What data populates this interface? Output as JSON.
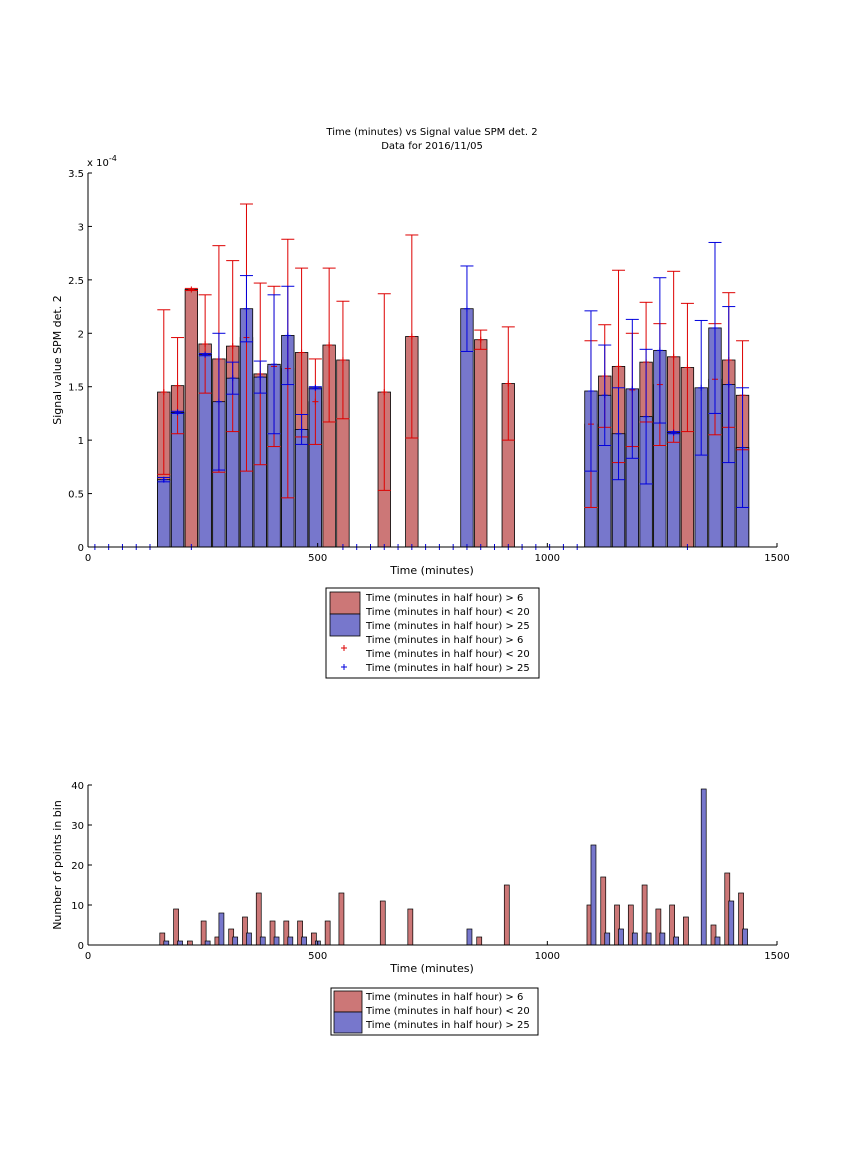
{
  "colors": {
    "red_bar": "#cc7777",
    "blue_bar": "#7777cc",
    "red_err": "#dd0000",
    "blue_err": "#0000dd"
  },
  "chart_data": [
    {
      "type": "bar",
      "title": "Time (minutes) vs Signal value SPM det. 2",
      "subtitle": "Data for 2016/11/05",
      "xlabel": "Time (minutes)",
      "ylabel": "Signal value SPM det. 2",
      "exponent_label": "x 10",
      "exponent_power": "-4",
      "xlim": [
        0,
        1500
      ],
      "ylim": [
        0,
        3.5
      ],
      "xticks": [
        0,
        500,
        1000,
        1500
      ],
      "yticks": [
        0,
        0.5,
        1,
        1.5,
        2,
        2.5,
        3,
        3.5
      ],
      "grid": false,
      "legend_position": "below",
      "legend": [
        "Time (minutes in half hour) > 6",
        "Time (minutes in half hour) < 20",
        "Time (minutes in half hour) > 25",
        "Time (minutes in half hour) > 6",
        "Time (minutes in half hour) < 20",
        "Time (minutes in half hour) > 25"
      ],
      "series": [
        {
          "color": "red",
          "points": [
            {
              "x": 165,
              "y": 1.45,
              "err": 0.77
            },
            {
              "x": 195,
              "y": 1.51,
              "err": 0.45
            },
            {
              "x": 225,
              "y": 2.41,
              "err": 0.01
            },
            {
              "x": 255,
              "y": 1.9,
              "err": 0.46
            },
            {
              "x": 285,
              "y": 1.76,
              "err": 1.06
            },
            {
              "x": 315,
              "y": 1.88,
              "err": 0.8
            },
            {
              "x": 345,
              "y": 1.96,
              "err": 1.25
            },
            {
              "x": 375,
              "y": 1.62,
              "err": 0.85
            },
            {
              "x": 405,
              "y": 1.69,
              "err": 0.75
            },
            {
              "x": 435,
              "y": 1.67,
              "err": 1.21
            },
            {
              "x": 465,
              "y": 1.82,
              "err": 0.79
            },
            {
              "x": 495,
              "y": 1.36,
              "err": 0.4
            },
            {
              "x": 525,
              "y": 1.89,
              "err": 0.72
            },
            {
              "x": 555,
              "y": 1.75,
              "err": 0.55
            },
            {
              "x": 645,
              "y": 1.45,
              "err": 0.92
            },
            {
              "x": 705,
              "y": 1.97,
              "err": 0.95
            },
            {
              "x": 855,
              "y": 1.94,
              "err": 0.09
            },
            {
              "x": 915,
              "y": 1.53,
              "err": 0.53
            },
            {
              "x": 1095,
              "y": 1.15,
              "err": 0.78
            },
            {
              "x": 1125,
              "y": 1.6,
              "err": 0.48
            },
            {
              "x": 1155,
              "y": 1.69,
              "err": 0.9
            },
            {
              "x": 1185,
              "y": 1.47,
              "err": 0.53
            },
            {
              "x": 1215,
              "y": 1.73,
              "err": 0.56
            },
            {
              "x": 1245,
              "y": 1.52,
              "err": 0.57
            },
            {
              "x": 1275,
              "y": 1.78,
              "err": 0.8
            },
            {
              "x": 1305,
              "y": 1.68,
              "err": 0.6
            },
            {
              "x": 1365,
              "y": 1.57,
              "err": 0.52
            },
            {
              "x": 1395,
              "y": 1.75,
              "err": 0.63
            },
            {
              "x": 1425,
              "y": 1.42,
              "err": 0.51
            }
          ]
        },
        {
          "color": "blue",
          "points": [
            {
              "x": 165,
              "y": 0.63,
              "err": 0.02
            },
            {
              "x": 195,
              "y": 1.26,
              "err": 0.01
            },
            {
              "x": 255,
              "y": 1.8,
              "err": 0.01
            },
            {
              "x": 285,
              "y": 1.36,
              "err": 0.64
            },
            {
              "x": 315,
              "y": 1.58,
              "err": 0.15
            },
            {
              "x": 345,
              "y": 2.23,
              "err": 0.31
            },
            {
              "x": 375,
              "y": 1.59,
              "err": 0.15
            },
            {
              "x": 405,
              "y": 1.71,
              "err": 0.65
            },
            {
              "x": 435,
              "y": 1.98,
              "err": 0.46
            },
            {
              "x": 465,
              "y": 1.1,
              "err": 0.14
            },
            {
              "x": 495,
              "y": 1.49,
              "err": 0.01
            },
            {
              "x": 825,
              "y": 2.23,
              "err": 0.4
            },
            {
              "x": 1095,
              "y": 1.46,
              "err": 0.75
            },
            {
              "x": 1125,
              "y": 1.42,
              "err": 0.47
            },
            {
              "x": 1155,
              "y": 1.06,
              "err": 0.43
            },
            {
              "x": 1185,
              "y": 1.48,
              "err": 0.65
            },
            {
              "x": 1215,
              "y": 1.22,
              "err": 0.63
            },
            {
              "x": 1245,
              "y": 1.84,
              "err": 0.68
            },
            {
              "x": 1275,
              "y": 1.07,
              "err": 0.01
            },
            {
              "x": 1335,
              "y": 1.49,
              "err": 0.63
            },
            {
              "x": 1365,
              "y": 2.05,
              "err": 0.8
            },
            {
              "x": 1395,
              "y": 1.52,
              "err": 0.73
            },
            {
              "x": 1425,
              "y": 0.93,
              "err": 0.56
            }
          ]
        },
        {
          "color": "blue_markers",
          "x": [
            15,
            45,
            75,
            105,
            135,
            225,
            555,
            585,
            615,
            645,
            675,
            705,
            735,
            765,
            795,
            825,
            855,
            885,
            915,
            945,
            975,
            1005,
            1035,
            1065,
            1305
          ]
        }
      ]
    },
    {
      "type": "bar",
      "xlabel": "Time (minutes)",
      "ylabel": "Number of points in bin",
      "xlim": [
        0,
        1500
      ],
      "ylim": [
        0,
        40
      ],
      "xticks": [
        0,
        500,
        1000,
        1500
      ],
      "yticks": [
        0,
        10,
        20,
        30,
        40
      ],
      "grid": false,
      "legend_position": "below",
      "legend": [
        "Time (minutes in half hour) > 6",
        "Time (minutes in half hour) < 20",
        "Time (minutes in half hour) > 25"
      ],
      "series": [
        {
          "color": "red",
          "points": [
            {
              "x": 165,
              "y": 3
            },
            {
              "x": 195,
              "y": 9
            },
            {
              "x": 225,
              "y": 1
            },
            {
              "x": 255,
              "y": 6
            },
            {
              "x": 285,
              "y": 2
            },
            {
              "x": 315,
              "y": 4
            },
            {
              "x": 345,
              "y": 7
            },
            {
              "x": 375,
              "y": 13
            },
            {
              "x": 405,
              "y": 6
            },
            {
              "x": 435,
              "y": 6
            },
            {
              "x": 465,
              "y": 6
            },
            {
              "x": 495,
              "y": 3
            },
            {
              "x": 525,
              "y": 6
            },
            {
              "x": 555,
              "y": 13
            },
            {
              "x": 645,
              "y": 11
            },
            {
              "x": 705,
              "y": 9
            },
            {
              "x": 855,
              "y": 2
            },
            {
              "x": 915,
              "y": 15
            },
            {
              "x": 1095,
              "y": 10
            },
            {
              "x": 1125,
              "y": 17
            },
            {
              "x": 1155,
              "y": 10
            },
            {
              "x": 1185,
              "y": 10
            },
            {
              "x": 1215,
              "y": 15
            },
            {
              "x": 1245,
              "y": 9
            },
            {
              "x": 1275,
              "y": 10
            },
            {
              "x": 1305,
              "y": 7
            },
            {
              "x": 1365,
              "y": 5
            },
            {
              "x": 1395,
              "y": 18
            },
            {
              "x": 1425,
              "y": 13
            }
          ]
        },
        {
          "color": "blue",
          "points": [
            {
              "x": 165,
              "y": 1
            },
            {
              "x": 195,
              "y": 1
            },
            {
              "x": 255,
              "y": 1
            },
            {
              "x": 285,
              "y": 8
            },
            {
              "x": 315,
              "y": 2
            },
            {
              "x": 345,
              "y": 3
            },
            {
              "x": 375,
              "y": 2
            },
            {
              "x": 405,
              "y": 2
            },
            {
              "x": 435,
              "y": 2
            },
            {
              "x": 465,
              "y": 2
            },
            {
              "x": 495,
              "y": 1
            },
            {
              "x": 825,
              "y": 4
            },
            {
              "x": 1095,
              "y": 25
            },
            {
              "x": 1125,
              "y": 3
            },
            {
              "x": 1155,
              "y": 4
            },
            {
              "x": 1185,
              "y": 3
            },
            {
              "x": 1215,
              "y": 3
            },
            {
              "x": 1245,
              "y": 3
            },
            {
              "x": 1275,
              "y": 2
            },
            {
              "x": 1335,
              "y": 39
            },
            {
              "x": 1365,
              "y": 2
            },
            {
              "x": 1395,
              "y": 11
            },
            {
              "x": 1425,
              "y": 4
            }
          ]
        }
      ]
    }
  ]
}
